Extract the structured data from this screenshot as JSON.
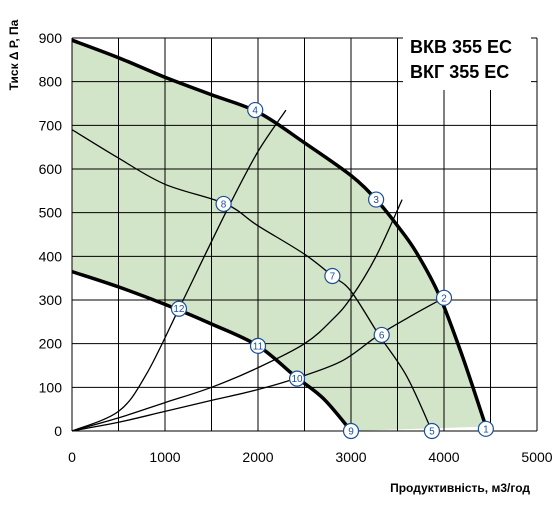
{
  "chart_data": {
    "type": "line",
    "title_lines": [
      "ВКВ 355 ЕС",
      "ВКГ 355 ЕС"
    ],
    "xlabel": "Продуктивність, м3/год",
    "ylabel": "Тиск Δ P, Па",
    "xlim": [
      0,
      5000
    ],
    "ylim": [
      0,
      900
    ],
    "x_ticks": [
      0,
      1000,
      2000,
      3000,
      4000,
      5000
    ],
    "y_ticks": [
      0,
      100,
      200,
      300,
      400,
      500,
      600,
      700,
      800,
      900
    ],
    "x_gridlines": [
      0,
      500,
      1000,
      1500,
      2000,
      2500,
      3000,
      3500,
      4000,
      4500,
      5000
    ],
    "y_gridlines": [
      0,
      100,
      200,
      300,
      400,
      500,
      600,
      700,
      800,
      900
    ],
    "grid": true,
    "legend": "none",
    "colors": {
      "area": "#d3e5c8",
      "curve": "#000000",
      "marker": "#1a4f9c",
      "marker_fill": "#ffffff"
    },
    "operating_area": {
      "upper_curve": [
        [
          0,
          895
        ],
        [
          500,
          855
        ],
        [
          1000,
          810
        ],
        [
          1500,
          770
        ],
        [
          2000,
          730
        ],
        [
          2500,
          660
        ],
        [
          3000,
          585
        ],
        [
          3270,
          530
        ],
        [
          3500,
          470
        ],
        [
          3700,
          410
        ],
        [
          3950,
          310
        ],
        [
          4200,
          170
        ],
        [
          4450,
          10
        ]
      ],
      "lower_curve": [
        [
          0,
          365
        ],
        [
          500,
          330
        ],
        [
          1000,
          290
        ],
        [
          1500,
          245
        ],
        [
          2000,
          195
        ],
        [
          2400,
          125
        ],
        [
          2700,
          75
        ],
        [
          3000,
          0
        ]
      ]
    },
    "series": [
      {
        "points": [
          [
            0,
            690
          ],
          [
            500,
            625
          ],
          [
            1000,
            565
          ],
          [
            1650,
            520
          ],
          [
            2000,
            470
          ],
          [
            2500,
            405
          ],
          [
            2800,
            355
          ],
          [
            3000,
            320
          ],
          [
            3300,
            220
          ],
          [
            3600,
            125
          ],
          [
            3870,
            0
          ]
        ]
      },
      {
        "points": [
          [
            0,
            0
          ],
          [
            500,
            30
          ],
          [
            1000,
            65
          ],
          [
            1500,
            100
          ],
          [
            2000,
            145
          ],
          [
            2500,
            200
          ],
          [
            2800,
            255
          ],
          [
            3000,
            305
          ],
          [
            3270,
            400
          ],
          [
            3550,
            530
          ]
        ]
      },
      {
        "points": [
          [
            0,
            0
          ],
          [
            500,
            45
          ],
          [
            800,
            130
          ],
          [
            1150,
            280
          ],
          [
            1400,
            390
          ],
          [
            1700,
            520
          ],
          [
            2000,
            640
          ],
          [
            2300,
            735
          ]
        ]
      },
      {
        "points": [
          [
            0,
            0
          ],
          [
            500,
            20
          ],
          [
            1000,
            45
          ],
          [
            1500,
            70
          ],
          [
            2000,
            95
          ],
          [
            2400,
            120
          ],
          [
            2900,
            160
          ],
          [
            3300,
            220
          ],
          [
            3700,
            270
          ],
          [
            4000,
            305
          ]
        ]
      }
    ],
    "markers": [
      {
        "label": "1",
        "x": 4450,
        "y": 5
      },
      {
        "label": "2",
        "x": 4000,
        "y": 305
      },
      {
        "label": "3",
        "x": 3270,
        "y": 530
      },
      {
        "label": "4",
        "x": 1970,
        "y": 735
      },
      {
        "label": "5",
        "x": 3870,
        "y": 0
      },
      {
        "label": "6",
        "x": 3330,
        "y": 220
      },
      {
        "label": "7",
        "x": 2800,
        "y": 355
      },
      {
        "label": "8",
        "x": 1630,
        "y": 520
      },
      {
        "label": "9",
        "x": 3000,
        "y": 0
      },
      {
        "label": "10",
        "x": 2420,
        "y": 120
      },
      {
        "label": "11",
        "x": 2000,
        "y": 195
      },
      {
        "label": "12",
        "x": 1150,
        "y": 280
      }
    ]
  }
}
